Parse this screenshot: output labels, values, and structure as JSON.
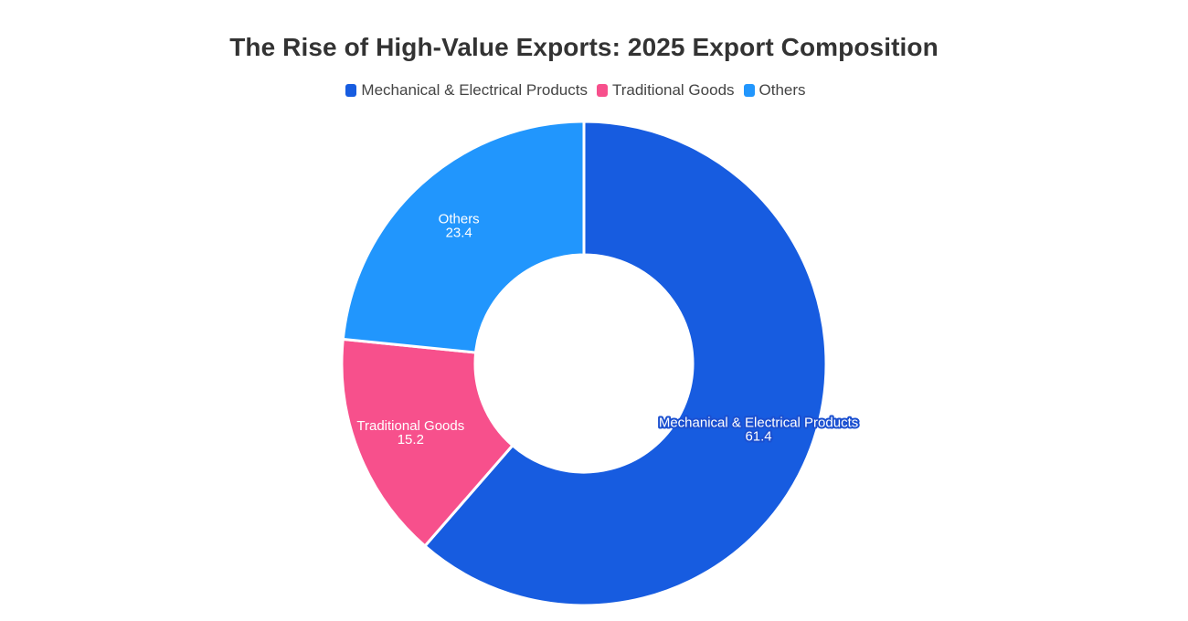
{
  "chart_data": {
    "type": "pie",
    "variant": "donut",
    "title": "The Rise of High-Value Exports: 2025 Export Composition",
    "categories": [
      "Mechanical & Electrical Products",
      "Traditional Goods",
      "Others"
    ],
    "values": [
      61.4,
      15.2,
      23.4
    ],
    "value_labels": [
      "61.4",
      "15.2",
      "23.4"
    ],
    "colors": [
      "#175ce0",
      "#f7508c",
      "#2196fd"
    ],
    "legend_position": "top-center",
    "legend": [
      {
        "label": "Mechanical & Electrical Products",
        "color": "#175ce0"
      },
      {
        "label": "Traditional Goods",
        "color": "#f7508c"
      },
      {
        "label": "Others",
        "color": "#2196fd"
      }
    ]
  }
}
